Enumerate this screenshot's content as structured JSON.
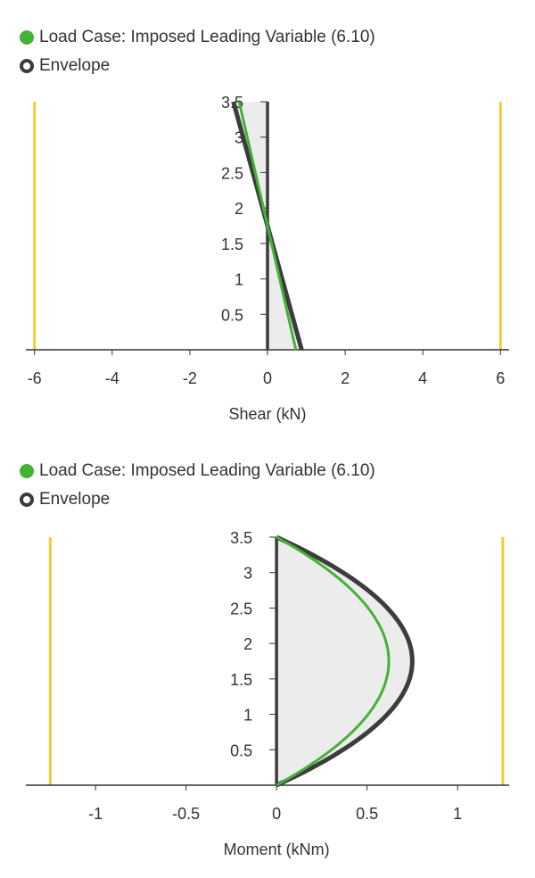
{
  "colors": {
    "load_case": "#44b335",
    "envelope": "#3c3c3c",
    "envelope_fill": "#ececec",
    "limit": "#f2cd33",
    "axis": "#333333"
  },
  "chart_data": [
    {
      "type": "line",
      "legend": [
        "Load Case: Imposed Leading Variable (6.10)",
        "Envelope"
      ],
      "xlabel": "Shear (kN)",
      "ylabel": "",
      "xlim": [
        -6.2,
        6.2
      ],
      "ylim": [
        0,
        3.5
      ],
      "xticks": [
        -6,
        -4,
        -2,
        0,
        2,
        4,
        6
      ],
      "xtick_labels": [
        "-6",
        "-4",
        "-2",
        "0",
        "2",
        "4",
        "6"
      ],
      "yticks": [
        0.5,
        1,
        1.5,
        2,
        2.5,
        3,
        3.5
      ],
      "ytick_labels": [
        "0.5",
        "1",
        "1.5",
        "2",
        "2.5",
        "3",
        "3.5"
      ],
      "limits": [
        -6,
        6
      ],
      "series": [
        {
          "name": "Load Case: Imposed Leading Variable (6.10)",
          "points": [
            [
              0.73,
              0
            ],
            [
              -0.73,
              3.5
            ]
          ]
        },
        {
          "name": "Envelope",
          "points": [
            [
              0.88,
              0
            ],
            [
              -0.88,
              3.5
            ]
          ]
        }
      ]
    },
    {
      "type": "line",
      "legend": [
        "Load Case: Imposed Leading Variable (6.10)",
        "Envelope"
      ],
      "xlabel": "Moment (kNm)",
      "ylabel": "",
      "xlim": [
        -1.38,
        1.28
      ],
      "ylim": [
        0,
        3.5
      ],
      "xticks": [
        -1,
        -0.5,
        0,
        0.5,
        1
      ],
      "xtick_labels": [
        "-1",
        "-0.5",
        "0",
        "0.5",
        "1"
      ],
      "yticks": [
        0.5,
        1,
        1.5,
        2,
        2.5,
        3,
        3.5
      ],
      "ytick_labels": [
        "0.5",
        "1",
        "1.5",
        "2",
        "2.5",
        "3",
        "3.5"
      ],
      "limits": [
        -1.25,
        1.25
      ],
      "series": [
        {
          "name": "Load Case: Imposed Leading Variable (6.10)",
          "parabola_max": 0.62,
          "span": 3.5
        },
        {
          "name": "Envelope",
          "parabola_max": 0.75,
          "span": 3.5
        }
      ]
    }
  ]
}
